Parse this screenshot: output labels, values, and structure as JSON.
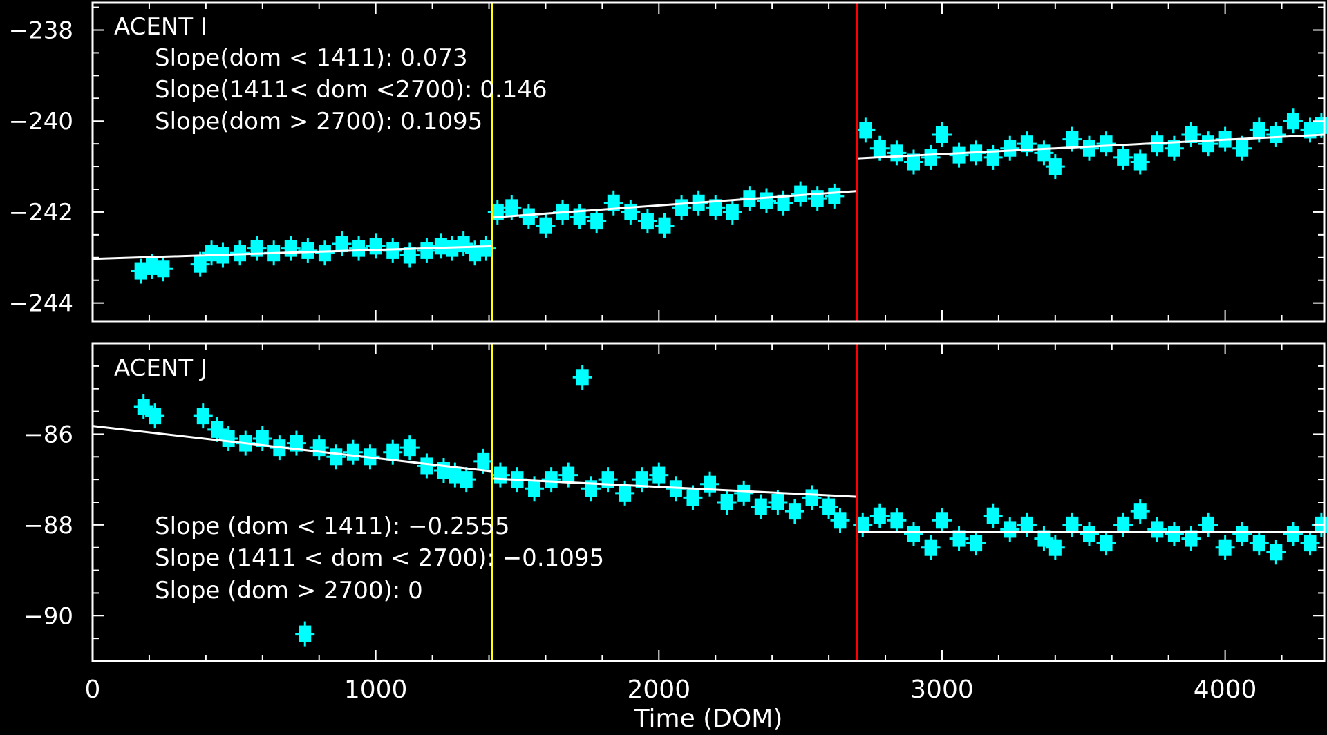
{
  "chart_data": [
    {
      "type": "scatter",
      "panel_label": "ACENT I",
      "annotations": [
        "Slope(dom < 1411): 0.073",
        "Slope(1411< dom <2700): 0.146",
        "Slope(dom > 2700): 0.1095"
      ],
      "ylim": [
        -244.4,
        -237.4
      ],
      "yticks": [
        -238,
        -240,
        -242,
        -244
      ],
      "xlim": [
        0,
        4350
      ],
      "segment_boundaries": [
        {
          "x": 1411,
          "color": "#ffff00"
        },
        {
          "x": 2700,
          "color": "#ff0000"
        }
      ],
      "fit_lines": [
        {
          "x": [
            0,
            1411
          ],
          "y": [
            -243.03,
            -242.75
          ]
        },
        {
          "x": [
            1411,
            2700
          ],
          "y": [
            -242.12,
            -241.54
          ]
        },
        {
          "x": [
            2700,
            4350
          ],
          "y": [
            -240.82,
            -240.3
          ]
        }
      ],
      "series": [
        {
          "color": "#00ffff",
          "x": [
            170,
            210,
            250,
            380,
            420,
            460,
            520,
            580,
            640,
            700,
            760,
            820,
            880,
            940,
            1000,
            1060,
            1120,
            1180,
            1230,
            1270,
            1310,
            1350,
            1390,
            1430,
            1480,
            1540,
            1600,
            1660,
            1720,
            1780,
            1840,
            1900,
            1960,
            2020,
            2080,
            2140,
            2200,
            2260,
            2320,
            2380,
            2440,
            2500,
            2560,
            2620,
            2730,
            2780,
            2840,
            2900,
            2960,
            3000,
            3060,
            3120,
            3180,
            3240,
            3300,
            3360,
            3400,
            3460,
            3520,
            3580,
            3640,
            3700,
            3760,
            3820,
            3880,
            3940,
            4000,
            4060,
            4120,
            4180,
            4240,
            4300,
            4340
          ],
          "y": [
            -243.3,
            -243.2,
            -243.25,
            -243.15,
            -242.9,
            -242.95,
            -242.9,
            -242.8,
            -242.9,
            -242.8,
            -242.85,
            -242.9,
            -242.7,
            -242.8,
            -242.75,
            -242.85,
            -242.95,
            -242.85,
            -242.75,
            -242.8,
            -242.7,
            -242.9,
            -242.8,
            -242.0,
            -241.9,
            -242.1,
            -242.3,
            -242.0,
            -242.1,
            -242.2,
            -241.8,
            -242.0,
            -242.2,
            -242.3,
            -241.9,
            -241.8,
            -241.9,
            -242.0,
            -241.7,
            -241.75,
            -241.8,
            -241.6,
            -241.7,
            -241.65,
            -240.2,
            -240.6,
            -240.7,
            -240.9,
            -240.8,
            -240.3,
            -240.75,
            -240.7,
            -240.8,
            -240.6,
            -240.5,
            -240.7,
            -241.0,
            -240.4,
            -240.6,
            -240.5,
            -240.8,
            -240.9,
            -240.5,
            -240.6,
            -240.3,
            -240.5,
            -240.4,
            -240.6,
            -240.2,
            -240.3,
            -240.0,
            -240.2,
            -240.1
          ]
        }
      ]
    },
    {
      "type": "scatter",
      "panel_label": "ACENT J",
      "annotations": [
        "Slope (dom < 1411): −0.2555",
        "Slope (1411 < dom < 2700): −0.1095",
        "Slope (dom > 2700): 0"
      ],
      "xlabel": "Time (DOM)",
      "xlim": [
        0,
        4350
      ],
      "xticks": [
        0,
        1000,
        2000,
        3000,
        4000
      ],
      "ylim": [
        -91.0,
        -84.0
      ],
      "yticks": [
        -86,
        -88,
        -90
      ],
      "segment_boundaries": [
        {
          "x": 1411,
          "color": "#ffff00"
        },
        {
          "x": 2700,
          "color": "#ff0000"
        }
      ],
      "fit_lines": [
        {
          "x": [
            0,
            1411
          ],
          "y": [
            -85.82,
            -86.82
          ]
        },
        {
          "x": [
            1411,
            2700
          ],
          "y": [
            -86.98,
            -87.38
          ]
        },
        {
          "x": [
            2700,
            4350
          ],
          "y": [
            -88.15,
            -88.15
          ]
        }
      ],
      "series": [
        {
          "color": "#00ffff",
          "x": [
            180,
            220,
            390,
            440,
            480,
            540,
            600,
            660,
            720,
            750,
            800,
            860,
            920,
            980,
            1060,
            1120,
            1180,
            1240,
            1280,
            1320,
            1380,
            1440,
            1500,
            1560,
            1620,
            1680,
            1730,
            1760,
            1820,
            1880,
            1940,
            2000,
            2060,
            2120,
            2180,
            2240,
            2300,
            2360,
            2420,
            2480,
            2540,
            2600,
            2640,
            2720,
            2780,
            2840,
            2900,
            2960,
            3000,
            3060,
            3120,
            3180,
            3240,
            3300,
            3360,
            3400,
            3460,
            3520,
            3580,
            3640,
            3700,
            3760,
            3820,
            3880,
            3940,
            4000,
            4060,
            4120,
            4180,
            4240,
            4300,
            4340
          ],
          "y": [
            -85.4,
            -85.6,
            -85.6,
            -85.9,
            -86.1,
            -86.2,
            -86.1,
            -86.3,
            -86.2,
            -90.4,
            -86.3,
            -86.5,
            -86.4,
            -86.5,
            -86.4,
            -86.3,
            -86.7,
            -86.8,
            -86.9,
            -87.0,
            -86.6,
            -86.9,
            -87.0,
            -87.2,
            -87.0,
            -86.9,
            -84.75,
            -87.2,
            -87.0,
            -87.3,
            -87.0,
            -86.9,
            -87.2,
            -87.4,
            -87.1,
            -87.5,
            -87.3,
            -87.6,
            -87.5,
            -87.7,
            -87.4,
            -87.6,
            -87.9,
            -88.0,
            -87.8,
            -87.9,
            -88.2,
            -88.5,
            -87.9,
            -88.3,
            -88.4,
            -87.8,
            -88.1,
            -88.0,
            -88.3,
            -88.5,
            -88.0,
            -88.2,
            -88.4,
            -88.0,
            -87.7,
            -88.1,
            -88.2,
            -88.3,
            -88.0,
            -88.5,
            -88.2,
            -88.4,
            -88.6,
            -88.2,
            -88.4,
            -88.0
          ]
        }
      ]
    }
  ]
}
